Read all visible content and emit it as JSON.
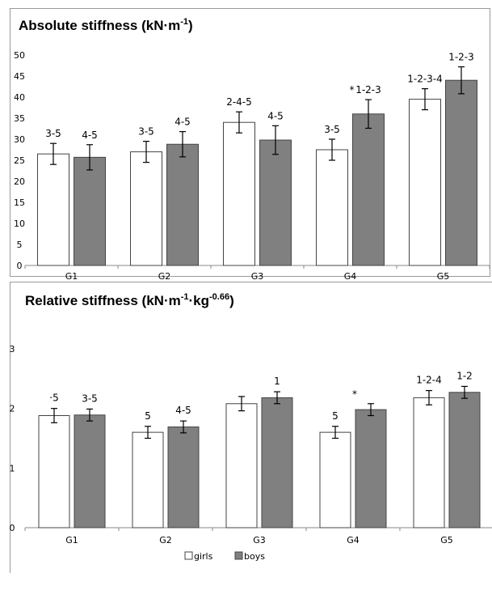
{
  "chart_data": [
    {
      "type": "bar",
      "title": "Absolute stiffness (kN·m",
      "title_sup": "-1",
      "title_end": ")",
      "categories": [
        "G1",
        "G2",
        "G3",
        "G4",
        "G5"
      ],
      "ylim": [
        0,
        50
      ],
      "yticks": [
        "0",
        "5",
        "10",
        "15",
        "20",
        "25",
        "30",
        "35",
        "40",
        "45",
        "50"
      ],
      "series": [
        {
          "name": "girls",
          "color": "#ffffff",
          "values": [
            26.5,
            27.0,
            34.0,
            27.5,
            39.5
          ],
          "errors": [
            2.5,
            2.5,
            2.5,
            2.5,
            2.5
          ],
          "labels": [
            "3-5",
            "3-5",
            "2-4-5",
            "3-5",
            "1-2-3-4"
          ]
        },
        {
          "name": "boys",
          "color": "#808080",
          "values": [
            25.7,
            28.8,
            29.8,
            36.0,
            44.0
          ],
          "errors": [
            3.0,
            3.0,
            3.4,
            3.4,
            3.2
          ],
          "labels": [
            "4-5",
            "4-5",
            "4-5",
            "1-2-3",
            "1-2-3"
          ]
        }
      ],
      "annotations": [
        {
          "text": "*",
          "category": "G4"
        }
      ]
    },
    {
      "type": "bar",
      "title": "Relative stiffness (kN·m",
      "title_sup": "-1",
      "title_mid": "·kg",
      "title_sup2": "-0.66",
      "title_end": ")",
      "categories": [
        "G1",
        "G2",
        "G3",
        "G4",
        "G5"
      ],
      "ylim": [
        0,
        3
      ],
      "yticks": [
        "0",
        "1",
        "2",
        "3"
      ],
      "series": [
        {
          "name": "girls",
          "color": "#ffffff",
          "values": [
            1.88,
            1.6,
            2.08,
            1.6,
            2.18
          ],
          "errors": [
            0.12,
            0.1,
            0.12,
            0.1,
            0.12
          ],
          "labels": [
            "·5",
            "5",
            "",
            "5",
            "1-2-4"
          ]
        },
        {
          "name": "boys",
          "color": "#808080",
          "values": [
            1.89,
            1.69,
            2.18,
            1.98,
            2.27
          ],
          "errors": [
            0.1,
            0.1,
            0.1,
            0.1,
            0.1
          ],
          "labels": [
            "3-5",
            "4-5",
            "1",
            "",
            "1-2"
          ]
        }
      ],
      "annotations": [
        {
          "text": "*",
          "category": "G4"
        }
      ],
      "legend": {
        "position": "bottom",
        "items": [
          "girls",
          "boys"
        ]
      }
    }
  ]
}
